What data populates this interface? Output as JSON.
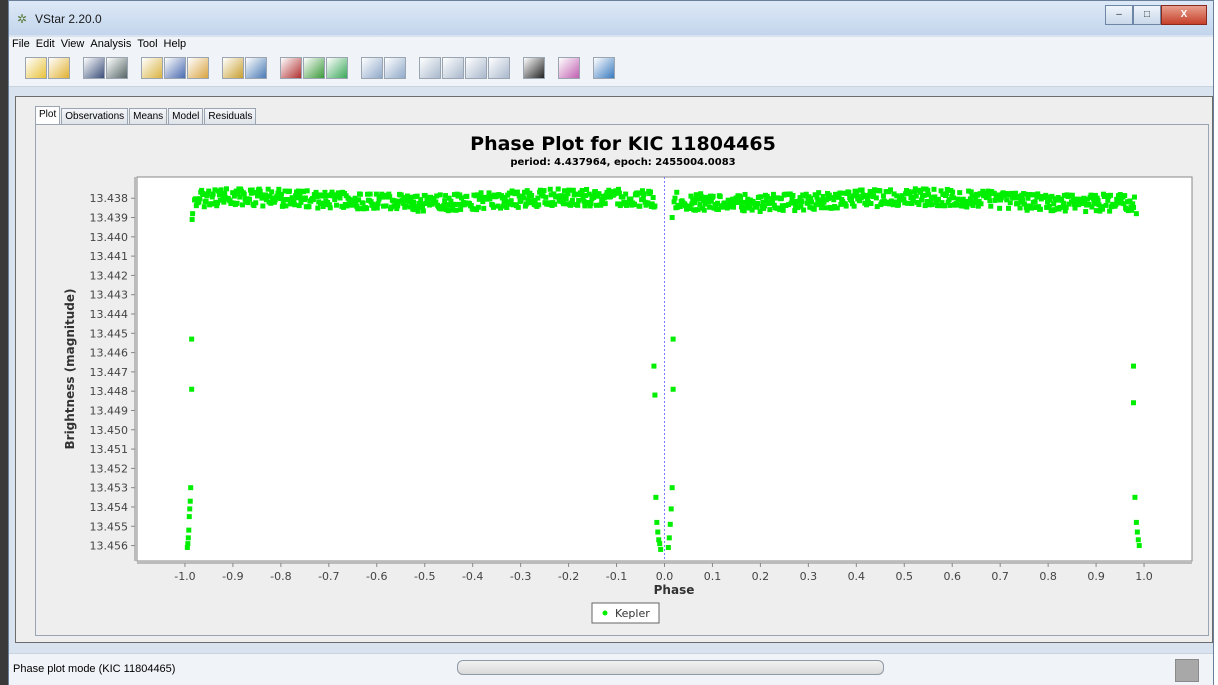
{
  "window": {
    "title": "VStar 2.20.0",
    "min": "–",
    "max": "□",
    "close": "X"
  },
  "menu": [
    "File",
    "Edit",
    "View",
    "Analysis",
    "Tool",
    "Help"
  ],
  "toolbar": [
    {
      "icon": "new-star-icon",
      "color": "#e8c23a"
    },
    {
      "icon": "open-file-icon",
      "color": "#e0b030"
    },
    {
      "icon": "save-icon",
      "color": "#3b4f7a"
    },
    {
      "icon": "print-icon",
      "color": "#566"
    },
    {
      "icon": "star-info-icon",
      "color": "#d9b341"
    },
    {
      "icon": "star-group-icon",
      "color": "#4a6ab0"
    },
    {
      "icon": "star-select-icon",
      "color": "#d9a441"
    },
    {
      "icon": "period-search-icon",
      "color": "#c8a030"
    },
    {
      "icon": "wavelet-icon",
      "color": "#4a7ab5"
    },
    {
      "icon": "raw-plot-icon",
      "color": "#b03030"
    },
    {
      "icon": "phase-plot-icon",
      "color": "#3a9a3a"
    },
    {
      "icon": "polynomial-fit-icon",
      "color": "#3aa85a"
    },
    {
      "icon": "zoom-in-icon",
      "color": "#8fa9c9"
    },
    {
      "icon": "zoom-out-icon",
      "color": "#8fa9c9"
    },
    {
      "icon": "pan-left-icon",
      "color": "#a9b8cc"
    },
    {
      "icon": "pan-right-icon",
      "color": "#a9b8cc"
    },
    {
      "icon": "pan-up-icon",
      "color": "#a9b8cc"
    },
    {
      "icon": "pan-down-icon",
      "color": "#a9b8cc"
    },
    {
      "icon": "filter-icon",
      "color": "#222"
    },
    {
      "icon": "plugin-icon",
      "color": "#c060b0"
    },
    {
      "icon": "help-book-icon",
      "color": "#3a7ac0"
    }
  ],
  "tabs": [
    "Plot",
    "Observations",
    "Means",
    "Model",
    "Residuals"
  ],
  "status": {
    "text": "Phase plot mode (KIC 11804465)"
  },
  "chart_data": {
    "type": "scatter",
    "title": "Phase Plot for KIC 11804465",
    "subtitle": "period: 4.437964, epoch: 2455004.0083",
    "xlabel": "Phase",
    "ylabel": "Brightness (magnitude)",
    "xlim": [
      -1.1,
      1.1
    ],
    "ylim": [
      13.4568,
      13.4369
    ],
    "y_inverted": true,
    "xticks": [
      "-1.0",
      "-0.9",
      "-0.8",
      "-0.7",
      "-0.6",
      "-0.5",
      "-0.4",
      "-0.3",
      "-0.2",
      "-0.1",
      "0.0",
      "0.1",
      "0.2",
      "0.3",
      "0.4",
      "0.5",
      "0.6",
      "0.7",
      "0.8",
      "0.9",
      "1.0"
    ],
    "yticks": [
      "13.438",
      "13.439",
      "13.440",
      "13.441",
      "13.442",
      "13.443",
      "13.444",
      "13.445",
      "13.446",
      "13.447",
      "13.448",
      "13.449",
      "13.450",
      "13.451",
      "13.452",
      "13.453",
      "13.454",
      "13.455",
      "13.456"
    ],
    "legend_position": "bottom",
    "zero_line": true,
    "series": [
      {
        "name": "Kepler",
        "color": "#00ee00",
        "baseline": {
          "segments": [
            [
              -0.98,
              -0.02
            ],
            [
              0.02,
              0.98
            ]
          ],
          "mag_min": 13.4376,
          "mag_max": 13.4386
        },
        "points": [
          [
            -0.985,
            13.4391
          ],
          [
            -0.984,
            13.4388
          ],
          [
            -0.986,
            13.4453
          ],
          [
            -0.986,
            13.4479
          ],
          [
            -0.988,
            13.453
          ],
          [
            -0.989,
            13.4537
          ],
          [
            -0.99,
            13.4541
          ],
          [
            -0.991,
            13.4545
          ],
          [
            -0.992,
            13.4552
          ],
          [
            -0.993,
            13.4556
          ],
          [
            -0.994,
            13.4559
          ],
          [
            -0.995,
            13.4561
          ],
          [
            -0.022,
            13.4467
          ],
          [
            -0.02,
            13.4482
          ],
          [
            -0.018,
            13.4535
          ],
          [
            -0.016,
            13.4548
          ],
          [
            -0.014,
            13.4553
          ],
          [
            -0.012,
            13.4557
          ],
          [
            -0.01,
            13.4559
          ],
          [
            -0.008,
            13.4562
          ],
          [
            0.008,
            13.4561
          ],
          [
            0.01,
            13.4556
          ],
          [
            0.012,
            13.4549
          ],
          [
            0.014,
            13.4541
          ],
          [
            0.016,
            13.453
          ],
          [
            0.018,
            13.4453
          ],
          [
            0.018,
            13.4479
          ],
          [
            0.016,
            13.439
          ],
          [
            0.984,
            13.4388
          ],
          [
            0.978,
            13.4467
          ],
          [
            0.978,
            13.4486
          ],
          [
            0.981,
            13.4535
          ],
          [
            0.984,
            13.4548
          ],
          [
            0.986,
            13.4553
          ],
          [
            0.988,
            13.4557
          ],
          [
            0.99,
            13.456
          ]
        ]
      }
    ]
  }
}
